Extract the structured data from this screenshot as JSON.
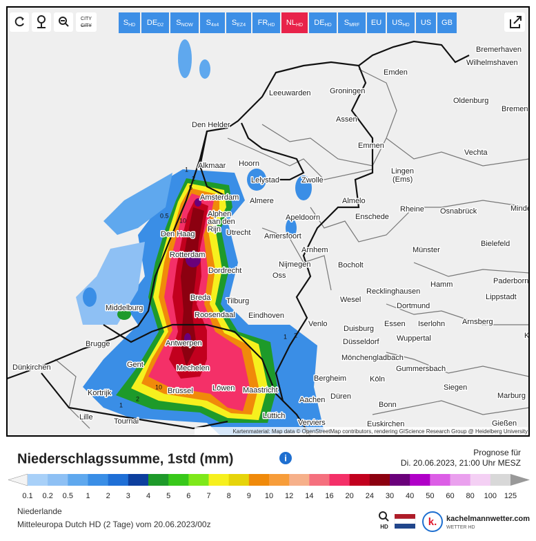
{
  "toolbar": {
    "city_icon": "CITY",
    "buttons": [
      {
        "main": "S",
        "sub": "HD"
      },
      {
        "main": "DE",
        "sub": "D2"
      },
      {
        "main": "S",
        "sub": "NOW"
      },
      {
        "main": "S",
        "sub": "4x4"
      },
      {
        "main": "S",
        "sub": "EZ4"
      },
      {
        "main": "FR",
        "sub": "HD"
      },
      {
        "main": "NL",
        "sub": "HD"
      },
      {
        "main": "DE",
        "sub": "HD"
      },
      {
        "main": "S",
        "sub": "MRF"
      },
      {
        "main": "EU"
      },
      {
        "main": "US",
        "sub": "HD"
      },
      {
        "main": "US"
      },
      {
        "main": "GB"
      }
    ]
  },
  "map": {
    "cities": [
      "Bremerhaven",
      "Wilhelmshaven",
      "Emden",
      "Leeuwarden",
      "Groningen",
      "Oldenburg",
      "Bremen",
      "Den Helder",
      "Assen",
      "Emmen",
      "Vechta",
      "Alkmaar",
      "Hoorn",
      "Lingen",
      "(Ems)",
      "Lelystad",
      "Zwolle",
      "Amsterdam",
      "Almere",
      "Almelo",
      "Alphen",
      "aan den",
      "Rijn",
      "Rheine",
      "Osnabrück",
      "Minden",
      "Den Haag",
      "Utrecht",
      "Apeldoorn",
      "Enschede",
      "Amersfoort",
      "Bielefeld",
      "Rotterdam",
      "Arnhem",
      "Münster",
      "Dordrecht",
      "Nijmegen",
      "Bocholt",
      "Oss",
      "Paderborn",
      "Hamm",
      "Recklinghausen",
      "Breda",
      "Tilburg",
      "Wesel",
      "Lippstadt",
      "Middelburg",
      "Dortmund",
      "Roosendaal",
      "Eindhoven",
      "Venlo",
      "Arnsberg",
      "Duisburg",
      "Essen",
      "Iserlohn",
      "Korbach",
      "Antwerpen",
      "Düsseldorf",
      "Wuppertal",
      "Brugge",
      "Dünkirchen",
      "Gent",
      "Mechelen",
      "Mönchengladbach",
      "Gummersbach",
      "Bergheim",
      "Köln",
      "Brüssel",
      "Löwen",
      "Maastricht",
      "Siegen",
      "Kortrijk",
      "Düren",
      "Marburg",
      "Aachen",
      "Bonn",
      "Lille",
      "Tournai",
      "Lüttich",
      "Verviers",
      "Euskirchen",
      "Gießen"
    ],
    "contour_labels": [
      0.5,
      1,
      2,
      5,
      10,
      10,
      1,
      2,
      1,
      2
    ],
    "attribution": "Kartenmaterial: Map data © OpenStreetMap contributors, rendering GIScience Research Group @ Heidelberg University"
  },
  "footer": {
    "title": "Niederschlagssumme, 1std (mm)",
    "forecast_label": "Prognose für",
    "forecast_time": "Di. 20.06.2023, 21:00 Uhr MESZ",
    "legend": {
      "labels": [
        0.1,
        0.2,
        0.5,
        1,
        2,
        3,
        4,
        5,
        6,
        7,
        8,
        9,
        10,
        12,
        14,
        16,
        20,
        24,
        30,
        40,
        50,
        60,
        80,
        100,
        125
      ],
      "colors": [
        "#a8d0f8",
        "#8ec0f4",
        "#5fa8ee",
        "#3a8ee6",
        "#1f6fd6",
        "#0d3f9e",
        "#1e9a2a",
        "#38c81a",
        "#7ee81a",
        "#f6f01e",
        "#e6d40a",
        "#f08a0a",
        "#f79d3a",
        "#f6b08a",
        "#f5707e",
        "#f43068",
        "#c2001e",
        "#8c0010",
        "#6a007a",
        "#b000c8",
        "#dc5ee6",
        "#eaa0ee",
        "#f4d0f4",
        "#d8d8d8"
      ]
    },
    "region": "Niederlande",
    "model": "Mitteleuropa Dutch HD (2 Tage) vom 20.06.2023/00z",
    "logo": {
      "hd": "HD",
      "site": "kachelmannwetter.com",
      "tag": "WETTER HD"
    }
  }
}
